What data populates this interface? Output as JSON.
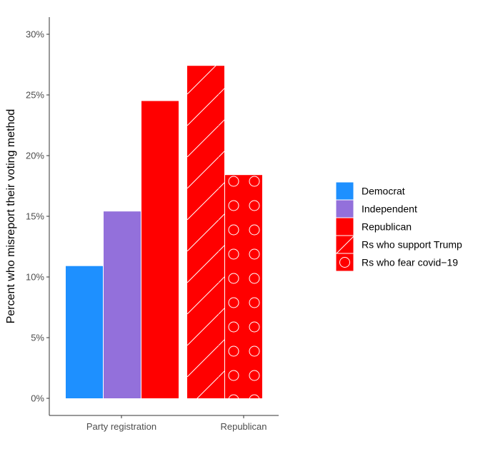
{
  "chart_data": {
    "type": "bar",
    "title": "",
    "xlabel": "",
    "ylabel": "Percent who misreport their voting method",
    "ylim": [
      0,
      31
    ],
    "y_ticks": [
      0,
      5,
      10,
      15,
      20,
      25,
      30
    ],
    "y_tick_labels": [
      "0%",
      "5%",
      "10%",
      "15%",
      "20%",
      "25%",
      "30%"
    ],
    "groups": [
      "Party registration",
      "Republican"
    ],
    "bars": [
      {
        "group": "Party registration",
        "series": "Democrat",
        "value": 10.9
      },
      {
        "group": "Party registration",
        "series": "Independent",
        "value": 15.4
      },
      {
        "group": "Party registration",
        "series": "Republican",
        "value": 24.5
      },
      {
        "group": "Republican",
        "series": "Rs who support Trump",
        "value": 27.4
      },
      {
        "group": "Republican",
        "series": "Rs who fear covid−19",
        "value": 18.4
      }
    ],
    "series": [
      {
        "name": "Democrat",
        "color": "#1e90ff",
        "pattern": "none"
      },
      {
        "name": "Independent",
        "color": "#9370db",
        "pattern": "none"
      },
      {
        "name": "Republican",
        "color": "#ff0000",
        "pattern": "none"
      },
      {
        "name": "Rs who support Trump",
        "color": "#ff0000",
        "pattern": "stripe"
      },
      {
        "name": "Rs who fear covid−19",
        "color": "#ff0000",
        "pattern": "circle"
      }
    ],
    "legend_position": "right",
    "grid": false
  }
}
